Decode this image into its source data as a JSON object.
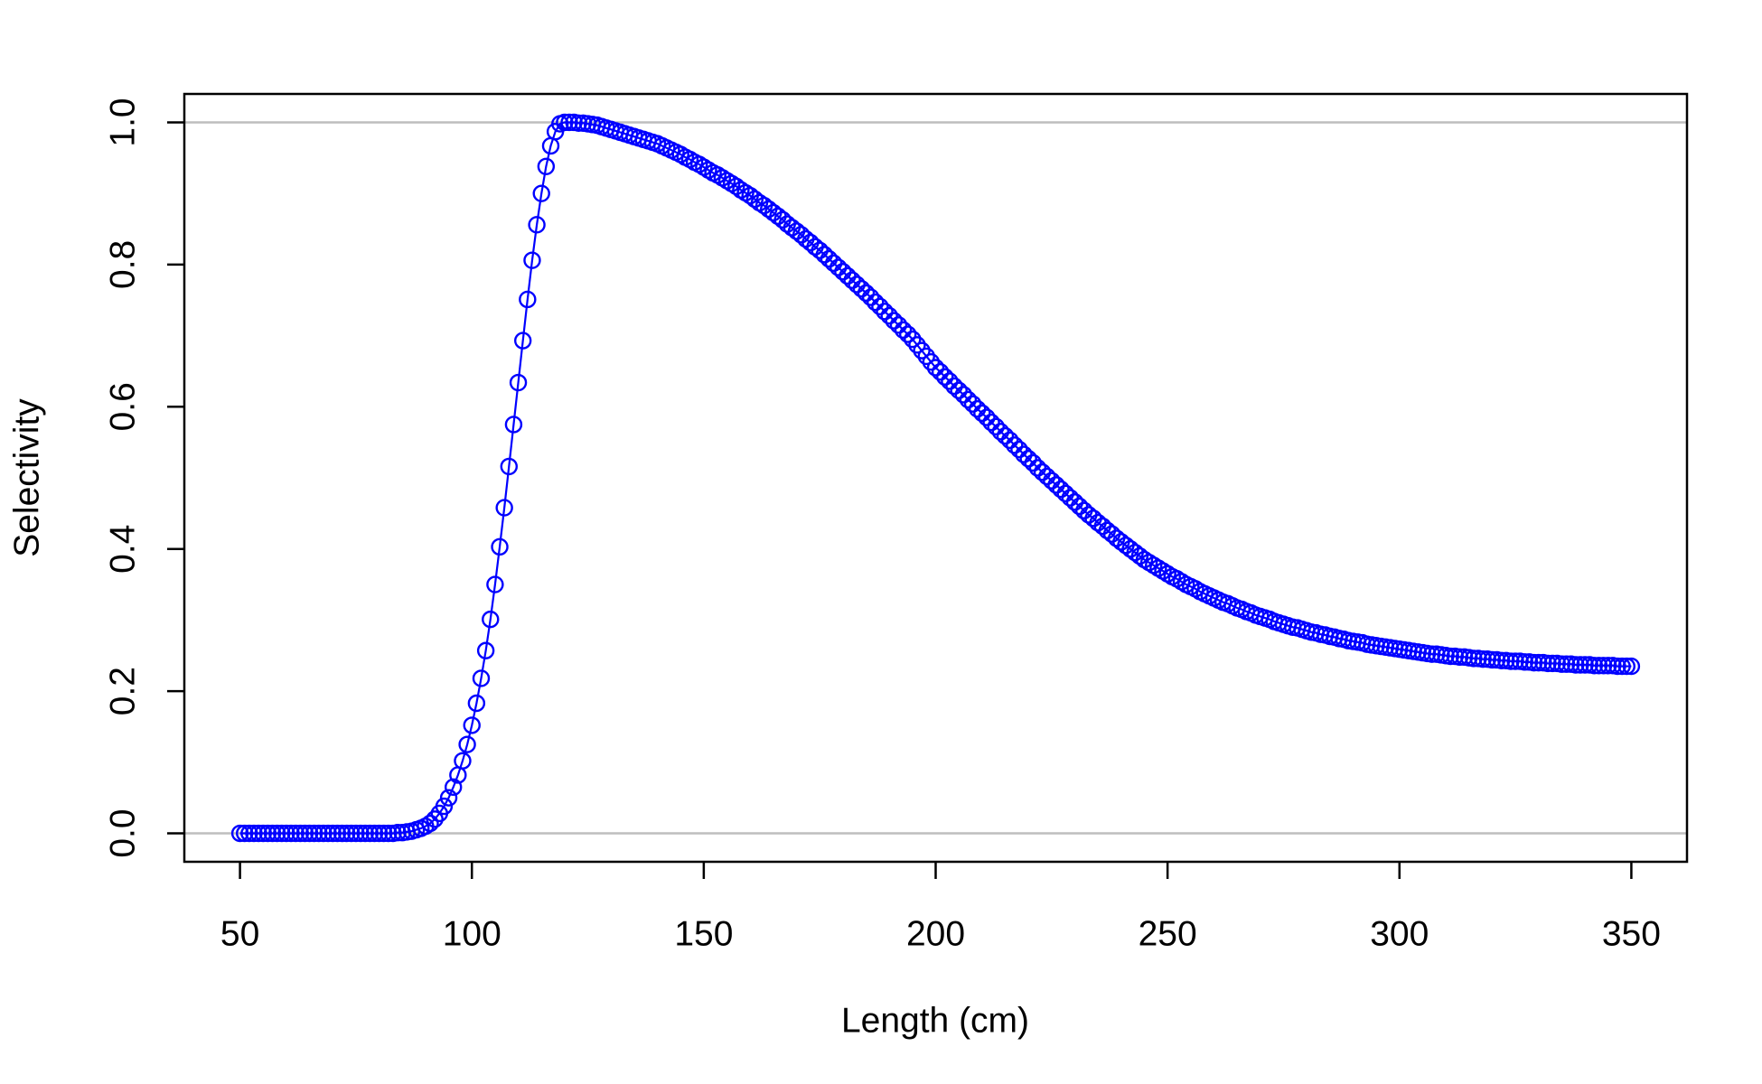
{
  "chart_data": {
    "type": "line",
    "x_label": "Length (cm)",
    "y_label": "Selectivity",
    "color": "#0000ff",
    "marker": "open-circle",
    "line": true,
    "hlines": [
      0,
      1
    ],
    "hline_color": "#bebebe",
    "xlim": [
      38,
      362
    ],
    "ylim": [
      -0.04,
      1.04
    ],
    "xticks": [
      50,
      100,
      150,
      200,
      250,
      300,
      350
    ],
    "yticks": [
      {
        "value": 0,
        "label": "0.0"
      },
      0.2,
      0.4,
      0.6,
      0.8,
      {
        "value": 1,
        "label": "1.0"
      }
    ],
    "x": [
      50,
      51,
      52,
      53,
      54,
      55,
      56,
      57,
      58,
      59,
      60,
      61,
      62,
      63,
      64,
      65,
      66,
      67,
      68,
      69,
      70,
      71,
      72,
      73,
      74,
      75,
      76,
      77,
      78,
      79,
      80,
      81,
      82,
      83,
      84,
      85,
      86,
      87,
      88,
      89,
      90,
      91,
      92,
      93,
      94,
      95,
      96,
      97,
      98,
      99,
      100,
      101,
      102,
      103,
      104,
      105,
      106,
      107,
      108,
      109,
      110,
      111,
      112,
      113,
      114,
      115,
      116,
      117,
      118,
      119,
      120,
      121,
      122,
      123,
      124,
      125,
      126,
      127,
      128,
      129,
      130,
      131,
      132,
      133,
      134,
      135,
      136,
      137,
      138,
      139,
      140,
      141,
      142,
      143,
      144,
      145,
      146,
      147,
      148,
      149,
      150,
      151,
      152,
      153,
      154,
      155,
      156,
      157,
      158,
      159,
      160,
      161,
      162,
      163,
      164,
      165,
      166,
      167,
      168,
      169,
      170,
      171,
      172,
      173,
      174,
      175,
      176,
      177,
      178,
      179,
      180,
      181,
      182,
      183,
      184,
      185,
      186,
      187,
      188,
      189,
      190,
      191,
      192,
      193,
      194,
      195,
      196,
      197,
      198,
      199,
      200,
      201,
      202,
      203,
      204,
      205,
      206,
      207,
      208,
      209,
      210,
      211,
      212,
      213,
      214,
      215,
      216,
      217,
      218,
      219,
      220,
      221,
      222,
      223,
      224,
      225,
      226,
      227,
      228,
      229,
      230,
      231,
      232,
      233,
      234,
      235,
      236,
      237,
      238,
      239,
      240,
      241,
      242,
      243,
      244,
      245,
      246,
      247,
      248,
      249,
      250,
      251,
      252,
      253,
      254,
      255,
      256,
      257,
      258,
      259,
      260,
      261,
      262,
      263,
      264,
      265,
      266,
      267,
      268,
      269,
      270,
      271,
      272,
      273,
      274,
      275,
      276,
      277,
      278,
      279,
      280,
      281,
      282,
      283,
      284,
      285,
      286,
      287,
      288,
      289,
      290,
      291,
      292,
      293,
      294,
      295,
      296,
      297,
      298,
      299,
      300,
      301,
      302,
      303,
      304,
      305,
      306,
      307,
      308,
      309,
      310,
      311,
      312,
      313,
      314,
      315,
      316,
      317,
      318,
      319,
      320,
      321,
      322,
      323,
      324,
      325,
      326,
      327,
      328,
      329,
      330,
      331,
      332,
      333,
      334,
      335,
      336,
      337,
      338,
      339,
      340,
      341,
      342,
      343,
      344,
      345,
      346,
      347,
      348,
      349,
      350
    ],
    "values": [
      0,
      0,
      0,
      0,
      0,
      0,
      0,
      0,
      0,
      0,
      0,
      0,
      0,
      0,
      0,
      0,
      0,
      0,
      0,
      0,
      0,
      0,
      0,
      0,
      0,
      0,
      0,
      0,
      0,
      0,
      0,
      0,
      0,
      0,
      0.001,
      0.001,
      0.002,
      0.003,
      0.005,
      0.007,
      0.01,
      0.014,
      0.02,
      0.028,
      0.038,
      0.05,
      0.065,
      0.082,
      0.102,
      0.125,
      0.152,
      0.183,
      0.218,
      0.257,
      0.301,
      0.35,
      0.403,
      0.458,
      0.516,
      0.575,
      0.634,
      0.693,
      0.751,
      0.806,
      0.856,
      0.9,
      0.938,
      0.967,
      0.987,
      0.998,
      1.0,
      1.0,
      1.0,
      0.999,
      0.999,
      0.998,
      0.997,
      0.996,
      0.994,
      0.992,
      0.99,
      0.988,
      0.986,
      0.984,
      0.982,
      0.98,
      0.978,
      0.976,
      0.974,
      0.972,
      0.97,
      0.967,
      0.964,
      0.961,
      0.958,
      0.955,
      0.951,
      0.948,
      0.944,
      0.941,
      0.937,
      0.933,
      0.929,
      0.926,
      0.922,
      0.918,
      0.914,
      0.91,
      0.905,
      0.901,
      0.897,
      0.892,
      0.887,
      0.883,
      0.878,
      0.873,
      0.868,
      0.863,
      0.857,
      0.852,
      0.847,
      0.842,
      0.836,
      0.831,
      0.825,
      0.82,
      0.814,
      0.808,
      0.802,
      0.796,
      0.79,
      0.784,
      0.778,
      0.772,
      0.766,
      0.76,
      0.754,
      0.747,
      0.741,
      0.734,
      0.728,
      0.721,
      0.715,
      0.708,
      0.702,
      0.695,
      0.687,
      0.679,
      0.671,
      0.663,
      0.655,
      0.649,
      0.642,
      0.636,
      0.629,
      0.623,
      0.617,
      0.61,
      0.604,
      0.597,
      0.591,
      0.585,
      0.578,
      0.572,
      0.565,
      0.559,
      0.553,
      0.546,
      0.54,
      0.533,
      0.527,
      0.521,
      0.514,
      0.508,
      0.502,
      0.496,
      0.49,
      0.484,
      0.478,
      0.472,
      0.466,
      0.46,
      0.454,
      0.448,
      0.443,
      0.437,
      0.432,
      0.426,
      0.421,
      0.415,
      0.41,
      0.405,
      0.4,
      0.395,
      0.39,
      0.385,
      0.381,
      0.377,
      0.373,
      0.369,
      0.365,
      0.361,
      0.358,
      0.354,
      0.35,
      0.347,
      0.344,
      0.34,
      0.337,
      0.334,
      0.331,
      0.328,
      0.325,
      0.323,
      0.32,
      0.317,
      0.315,
      0.312,
      0.31,
      0.307,
      0.305,
      0.303,
      0.301,
      0.298,
      0.296,
      0.294,
      0.292,
      0.29,
      0.289,
      0.287,
      0.285,
      0.283,
      0.282,
      0.28,
      0.279,
      0.277,
      0.276,
      0.274,
      0.273,
      0.271,
      0.27,
      0.269,
      0.268,
      0.266,
      0.265,
      0.264,
      0.263,
      0.262,
      0.261,
      0.26,
      0.259,
      0.258,
      0.257,
      0.256,
      0.255,
      0.254,
      0.253,
      0.252,
      0.252,
      0.251,
      0.25,
      0.249,
      0.249,
      0.248,
      0.248,
      0.247,
      0.246,
      0.246,
      0.245,
      0.245,
      0.244,
      0.244,
      0.243,
      0.243,
      0.242,
      0.242,
      0.242,
      0.241,
      0.241,
      0.24,
      0.24,
      0.24,
      0.239,
      0.239,
      0.239,
      0.238,
      0.238,
      0.238,
      0.237,
      0.237,
      0.237,
      0.237,
      0.236,
      0.236,
      0.236,
      0.236,
      0.236,
      0.235,
      0.235,
      0.235,
      0.235
    ]
  }
}
